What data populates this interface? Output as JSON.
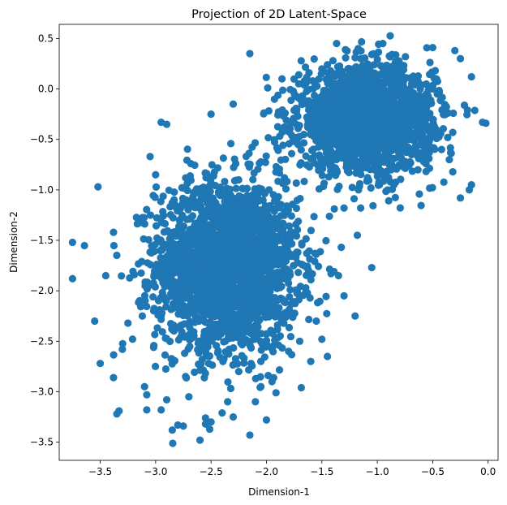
{
  "chart_data": {
    "type": "scatter",
    "title": "Projection of 2D Latent-Space",
    "xlabel": "Dimension-1",
    "ylabel": "Dimension-2",
    "xlim": [
      -3.87,
      0.09
    ],
    "ylim": [
      -3.68,
      0.64
    ],
    "x_ticks": [
      -3.5,
      -3.0,
      -2.5,
      -2.0,
      -1.5,
      -1.0,
      -0.5,
      0.0
    ],
    "x_tick_labels": [
      "−3.5",
      "−3.0",
      "−2.5",
      "−2.0",
      "−1.5",
      "−1.0",
      "−0.5",
      "0.0"
    ],
    "y_ticks": [
      0.5,
      0.0,
      -0.5,
      -1.0,
      -1.5,
      -2.0,
      -2.5,
      -3.0,
      -3.5
    ],
    "y_tick_labels": [
      "0.5",
      "0.0",
      "−0.5",
      "−1.0",
      "−1.5",
      "−2.0",
      "−2.5",
      "−3.0",
      "−3.5"
    ],
    "grid": false,
    "marker_color": "#1f77b4",
    "clusters": [
      {
        "center_x": -2.35,
        "center_y": -1.75,
        "spread_x": 0.32,
        "spread_y": 0.42,
        "count": 2400
      },
      {
        "center_x": -1.1,
        "center_y": -0.3,
        "spread_x": 0.3,
        "spread_y": 0.25,
        "count": 2200
      }
    ],
    "points": [
      [
        -3.75,
        -1.52
      ],
      [
        -3.75,
        -1.88
      ],
      [
        -3.52,
        -0.97
      ],
      [
        -3.55,
        -2.3
      ],
      [
        -3.5,
        -2.72
      ],
      [
        -3.38,
        -2.86
      ],
      [
        -3.35,
        -3.22
      ],
      [
        -3.33,
        -3.19
      ],
      [
        -3.38,
        -1.42
      ],
      [
        -3.45,
        -1.85
      ],
      [
        -3.3,
        -2.58
      ],
      [
        -3.25,
        -2.32
      ],
      [
        -3.12,
        -2.25
      ],
      [
        -3.1,
        -2.95
      ],
      [
        -3.08,
        -3.18
      ],
      [
        -3.05,
        -0.67
      ],
      [
        -3.0,
        -0.85
      ],
      [
        -3.08,
        -3.03
      ],
      [
        -2.95,
        -3.18
      ],
      [
        -2.9,
        -3.08
      ],
      [
        -2.85,
        -3.38
      ],
      [
        -2.8,
        -3.33
      ],
      [
        -2.75,
        -3.34
      ],
      [
        -2.7,
        -3.05
      ],
      [
        -2.6,
        -3.48
      ],
      [
        -2.55,
        -3.26
      ],
      [
        -2.55,
        -3.32
      ],
      [
        -2.5,
        -3.3
      ],
      [
        -2.4,
        -3.21
      ],
      [
        -2.35,
        -3.1
      ],
      [
        -2.3,
        -3.25
      ],
      [
        -2.25,
        -2.8
      ],
      [
        -2.15,
        -3.43
      ],
      [
        -2.1,
        -3.1
      ],
      [
        -2.05,
        -2.95
      ],
      [
        -2.0,
        -3.28
      ],
      [
        -1.95,
        -2.9
      ],
      [
        -1.8,
        -2.6
      ],
      [
        -1.7,
        -2.5
      ],
      [
        -1.6,
        -2.7
      ],
      [
        -1.45,
        -2.65
      ],
      [
        -1.5,
        -2.48
      ],
      [
        -1.55,
        -2.3
      ],
      [
        -1.2,
        -2.25
      ],
      [
        -1.3,
        -2.05
      ],
      [
        -1.35,
        -1.85
      ],
      [
        -1.05,
        -1.77
      ],
      [
        -1.18,
        -1.45
      ],
      [
        -2.9,
        -0.35
      ],
      [
        -2.95,
        -0.33
      ],
      [
        -2.15,
        0.35
      ],
      [
        -2.5,
        -0.25
      ],
      [
        -2.3,
        -0.15
      ],
      [
        -1.4,
        0.28
      ],
      [
        -1.2,
        0.31
      ],
      [
        -0.95,
        0.45
      ],
      [
        -0.5,
        0.41
      ],
      [
        -0.3,
        0.38
      ],
      [
        -0.25,
        0.3
      ],
      [
        -0.15,
        0.12
      ],
      [
        -0.05,
        -0.33
      ],
      [
        -0.02,
        -0.34
      ],
      [
        -0.15,
        -0.95
      ],
      [
        -0.17,
        -1.0
      ],
      [
        -0.25,
        -1.08
      ],
      [
        -0.35,
        -0.7
      ],
      [
        -0.42,
        -0.6
      ],
      [
        -1.15,
        -1.18
      ],
      [
        -1.3,
        -1.18
      ],
      [
        -0.85,
        -0.95
      ]
    ]
  }
}
